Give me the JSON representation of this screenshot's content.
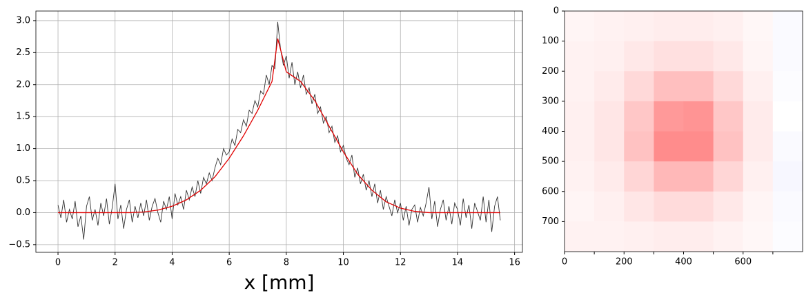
{
  "chart_data": [
    {
      "type": "line",
      "xlabel": "x [mm]",
      "grid": true,
      "xlim": [
        -0.775,
        16.275
      ],
      "ylim": [
        -0.62,
        3.15
      ],
      "xticks": [
        0,
        2,
        4,
        6,
        8,
        10,
        12,
        14,
        16
      ],
      "yticks": [
        {
          "value": -0.5,
          "label": "−0.5"
        },
        {
          "value": 0,
          "label": "0.0"
        },
        0.5,
        {
          "value": 1,
          "label": "1.0"
        },
        1.5,
        {
          "value": 2,
          "label": "2.0"
        },
        2.5,
        {
          "value": 3,
          "label": "3.0"
        }
      ],
      "series": [
        {
          "color": "#333333",
          "x": [
            0,
            0.1,
            0.2,
            0.3,
            0.4,
            0.5,
            0.6,
            0.7,
            0.8,
            0.9,
            1,
            1.1,
            1.2,
            1.3,
            1.4,
            1.5,
            1.6,
            1.7,
            1.8,
            1.9,
            2,
            2.1,
            2.2,
            2.3,
            2.4,
            2.5,
            2.6,
            2.7,
            2.8,
            2.9,
            3,
            3.1,
            3.2,
            3.3,
            3.4,
            3.5,
            3.6,
            3.7,
            3.8,
            3.9,
            4,
            4.1,
            4.2,
            4.3,
            4.4,
            4.5,
            4.6,
            4.7,
            4.8,
            4.9,
            5,
            5.1,
            5.2,
            5.3,
            5.4,
            5.5,
            5.6,
            5.7,
            5.8,
            5.9,
            6,
            6.1,
            6.2,
            6.3,
            6.4,
            6.5,
            6.6,
            6.7,
            6.8,
            6.9,
            7,
            7.1,
            7.2,
            7.3,
            7.4,
            7.5,
            7.6,
            7.7,
            7.8,
            7.9,
            8,
            8.1,
            8.2,
            8.3,
            8.4,
            8.5,
            8.6,
            8.7,
            8.8,
            8.9,
            9,
            9.1,
            9.2,
            9.3,
            9.4,
            9.5,
            9.6,
            9.7,
            9.8,
            9.9,
            10,
            10.1,
            10.2,
            10.3,
            10.4,
            10.5,
            10.6,
            10.7,
            10.8,
            10.9,
            11,
            11.1,
            11.2,
            11.3,
            11.4,
            11.5,
            11.6,
            11.7,
            11.8,
            11.9,
            12,
            12.1,
            12.2,
            12.3,
            12.4,
            12.5,
            12.6,
            12.7,
            12.8,
            12.9,
            13,
            13.1,
            13.2,
            13.3,
            13.4,
            13.5,
            13.6,
            13.7,
            13.8,
            13.9,
            14,
            14.1,
            14.2,
            14.3,
            14.4,
            14.5,
            14.6,
            14.7,
            14.8,
            14.9,
            15,
            15.1,
            15.2,
            15.3,
            15.4,
            15.5
          ],
          "values": [
            0.12,
            -0.08,
            0.2,
            -0.15,
            0.05,
            -0.1,
            0.18,
            -0.22,
            -0.05,
            -0.42,
            0.1,
            0.25,
            -0.12,
            0.05,
            -0.2,
            0.15,
            -0.05,
            0.22,
            -0.18,
            0.08,
            0.45,
            -0.1,
            0.12,
            -0.25,
            0.05,
            0.2,
            -0.15,
            0.1,
            -0.08,
            0.15,
            -0.05,
            0.2,
            -0.12,
            0.1,
            0.22,
            0,
            -0.15,
            0.18,
            0.05,
            0.25,
            -0.1,
            0.3,
            0.12,
            0.25,
            0.05,
            0.35,
            0.2,
            0.4,
            0.25,
            0.5,
            0.3,
            0.55,
            0.45,
            0.62,
            0.5,
            0.7,
            0.85,
            0.75,
            1,
            0.9,
            0.95,
            1.15,
            1.05,
            1.3,
            1.25,
            1.45,
            1.35,
            1.6,
            1.55,
            1.75,
            1.65,
            1.9,
            1.85,
            2.15,
            2,
            2.3,
            2.25,
            2.98,
            2.55,
            2.3,
            2.45,
            2.1,
            2.35,
            2,
            2.2,
            1.95,
            2.15,
            1.85,
            1.95,
            1.7,
            1.85,
            1.55,
            1.65,
            1.4,
            1.5,
            1.25,
            1.35,
            1.1,
            1.2,
            0.95,
            1.05,
            0.85,
            0.75,
            0.9,
            0.55,
            0.7,
            0.45,
            0.6,
            0.35,
            0.5,
            0.25,
            0.45,
            0.15,
            0.35,
            0.05,
            0.25,
            0.1,
            -0.05,
            0.2,
            0,
            0.15,
            -0.12,
            0.1,
            -0.2,
            0.05,
            0.12,
            -0.15,
            0.08,
            -0.05,
            0.15,
            0.4,
            -0.1,
            0.18,
            -0.22,
            0.05,
            0.2,
            -0.12,
            0.1,
            -0.18,
            0.15,
            0.05,
            -0.2,
            0.22,
            -0.08,
            0.12,
            -0.25,
            0.15,
            0.02,
            -0.12,
            0.25,
            -0.15,
            0.2,
            -0.3,
            0.1,
            0.25,
            -0.12
          ]
        },
        {
          "color": "#e00000",
          "x": [
            0,
            0.5,
            1,
            1.5,
            2,
            2.5,
            3,
            3.5,
            4,
            4.5,
            5,
            5.5,
            6,
            6.5,
            7,
            7.5,
            7.7,
            8,
            8.5,
            9,
            9.5,
            10,
            10.5,
            11,
            11.5,
            12,
            12.5,
            13,
            13.5,
            14,
            14.5,
            15,
            15.5
          ],
          "values": [
            0,
            0,
            0,
            0,
            0,
            0,
            0.01,
            0.04,
            0.1,
            0.2,
            0.35,
            0.56,
            0.85,
            1.2,
            1.6,
            2.05,
            2.72,
            2.2,
            2.05,
            1.75,
            1.35,
            0.95,
            0.6,
            0.35,
            0.17,
            0.07,
            0.02,
            0,
            0,
            0,
            0,
            0,
            0
          ]
        }
      ]
    },
    {
      "type": "heatmap",
      "cmap": "bwr",
      "clim": [
        -1,
        1
      ],
      "xlim": [
        0,
        800
      ],
      "ylim": [
        800,
        0
      ],
      "xticks": [
        0,
        200,
        400,
        600
      ],
      "xminor": [
        100,
        300,
        500,
        700
      ],
      "yticks": [
        0,
        100,
        200,
        300,
        400,
        500,
        600,
        700
      ],
      "z": [
        [
          0.04,
          0.05,
          0.06,
          0.07,
          0.07,
          0.06,
          0.03,
          -0.02
        ],
        [
          0.05,
          0.06,
          0.09,
          0.12,
          0.12,
          0.09,
          0.04,
          -0.02
        ],
        [
          0.05,
          0.08,
          0.15,
          0.25,
          0.25,
          0.15,
          0.06,
          -0.01
        ],
        [
          0.06,
          0.1,
          0.22,
          0.4,
          0.42,
          0.22,
          0.08,
          0
        ],
        [
          0.06,
          0.1,
          0.24,
          0.45,
          0.45,
          0.24,
          0.08,
          -0.02
        ],
        [
          0.05,
          0.08,
          0.16,
          0.28,
          0.28,
          0.16,
          0.06,
          -0.03
        ],
        [
          0.04,
          0.06,
          0.1,
          0.14,
          0.14,
          0.09,
          0.04,
          -0.02
        ],
        [
          0.05,
          0.05,
          0.06,
          0.07,
          0.07,
          0.05,
          0.03,
          -0.01
        ]
      ]
    }
  ]
}
